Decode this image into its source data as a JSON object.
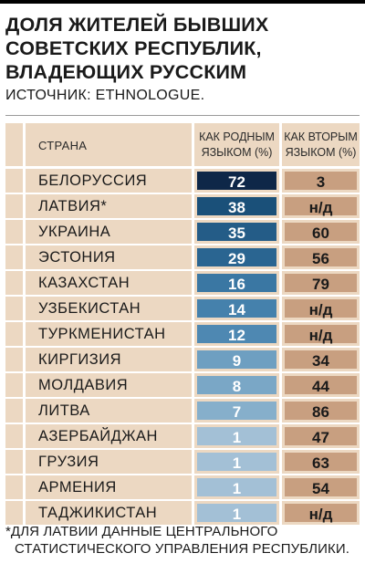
{
  "title_lines": [
    "ДОЛЯ ЖИТЕЛЕЙ БЫВШИХ",
    "СОВЕТСКИХ РЕСПУБЛИК,",
    "ВЛАДЕЮЩИХ РУССКИМ"
  ],
  "source": "ИСТОЧНИК: ETHNOLOGUE.",
  "headers": {
    "country": "СТРАНА",
    "native": "КАК РОДНЫМ ЯЗЫКОМ (%)",
    "second": "КАК ВТОРЫМ ЯЗЫКОМ (%)"
  },
  "chart_data": {
    "type": "table",
    "title": "ДОЛЯ ЖИТЕЛЕЙ БЫВШИХ СОВЕТСКИХ РЕСПУБЛИК, ВЛАДЕЮЩИХ РУССКИМ",
    "columns": [
      "СТРАНА",
      "КАК РОДНЫМ ЯЗЫКОМ (%)",
      "КАК ВТОРЫМ ЯЗЫКОМ (%)"
    ],
    "rows": [
      {
        "country": "БЕЛОРУССИЯ",
        "native": 72,
        "second": "3"
      },
      {
        "country": "ЛАТВИЯ*",
        "native": 38,
        "second": "н/д"
      },
      {
        "country": "УКРАИНА",
        "native": 35,
        "second": "60"
      },
      {
        "country": "ЭСТОНИЯ",
        "native": 29,
        "second": "56"
      },
      {
        "country": "КАЗАХСТАН",
        "native": 16,
        "second": "79"
      },
      {
        "country": "УЗБЕКИСТАН",
        "native": 14,
        "second": "н/д"
      },
      {
        "country": "ТУРКМЕНИСТАН",
        "native": 12,
        "second": "н/д"
      },
      {
        "country": "КИРГИЗИЯ",
        "native": 9,
        "second": "34"
      },
      {
        "country": "МОЛДАВИЯ",
        "native": 8,
        "second": "44"
      },
      {
        "country": "ЛИТВА",
        "native": 7,
        "second": "86"
      },
      {
        "country": "АЗЕРБАЙДЖАН",
        "native": 1,
        "second": "47"
      },
      {
        "country": "ГРУЗИЯ",
        "native": 1,
        "second": "63"
      },
      {
        "country": "АРМЕНИЯ",
        "native": 1,
        "second": "54"
      },
      {
        "country": "ТАДЖИКИСТАН",
        "native": 1,
        "second": "н/д"
      }
    ],
    "colors": {
      "native_scale": [
        "#0e2748",
        "#1a5079",
        "#245c87",
        "#2a6591",
        "#3a77a3",
        "#4581ac",
        "#4e88b2",
        "#6e9fc1",
        "#7aa7c6",
        "#86afcb",
        "#a3c0d6",
        "#a3c0d6",
        "#a3c0d6",
        "#a3c0d6"
      ],
      "second_fill": "#c89f80",
      "row_background": "#ecd8c2"
    }
  },
  "footnote_lines": [
    "*ДЛЯ ЛАТВИИ ДАННЫЕ ЦЕНТРАЛЬНОГО",
    "СТАТИСТИЧЕСКОГО УПРАВЛЕНИЯ РЕСПУБЛИКИ."
  ]
}
